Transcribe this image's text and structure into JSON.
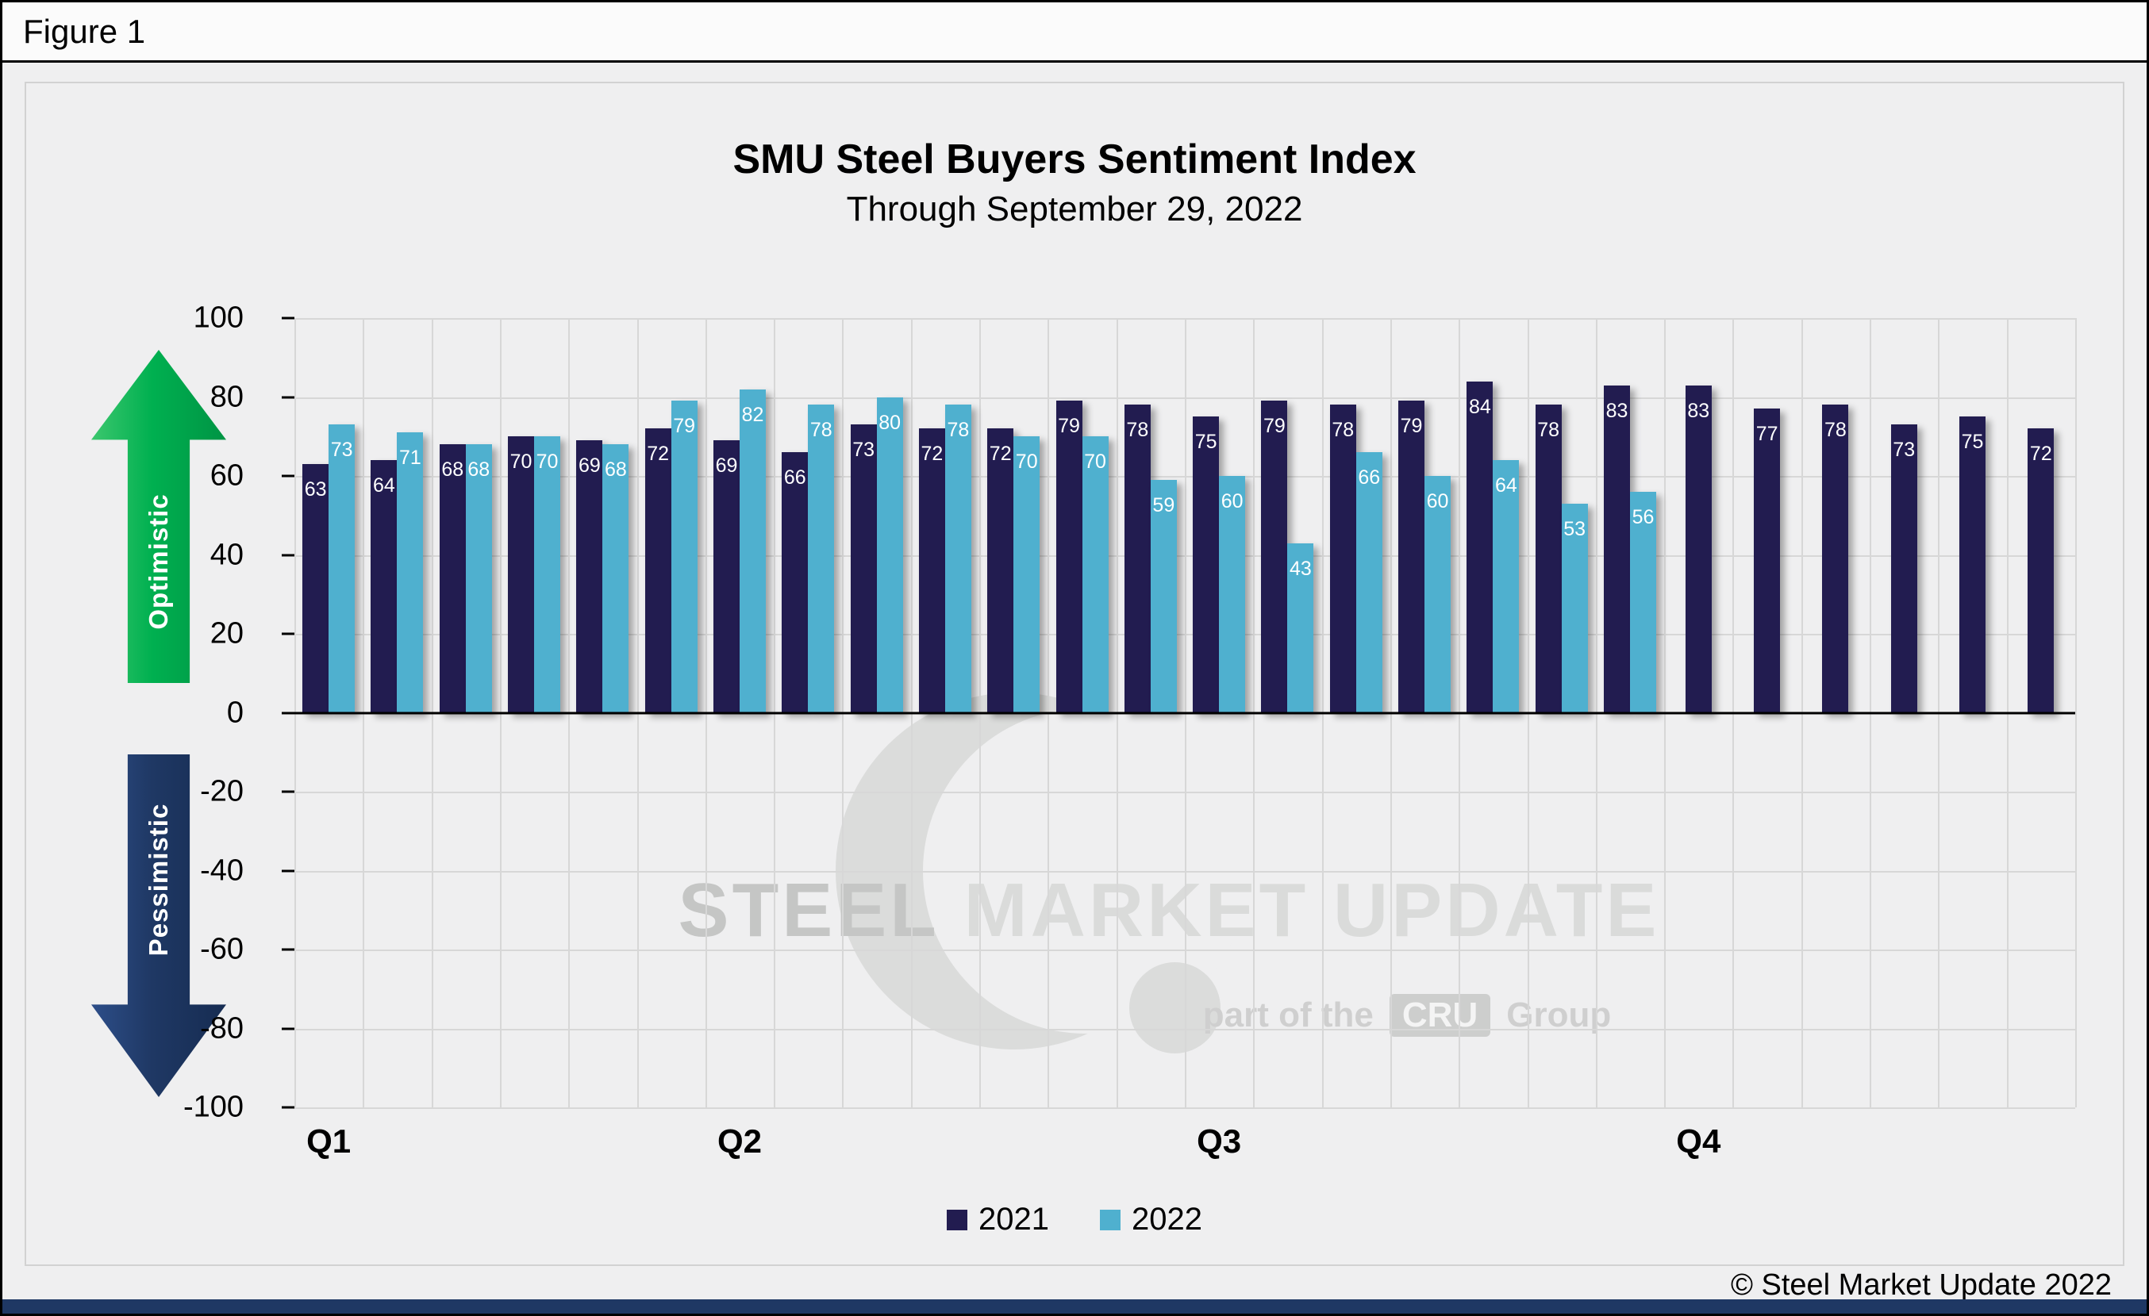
{
  "figure_label": "Figure 1",
  "header": {
    "title": "SMU Steel Buyers Sentiment Index",
    "subtitle": "Through September 29, 2022"
  },
  "annotations": {
    "optimistic": "Optimistic",
    "pessimistic": "Pessimistic"
  },
  "watermark": {
    "word1": "STEEL",
    "word2": "MARKET UPDATE",
    "tagline_prefix": "part of the",
    "tagline_box": "CRU",
    "tagline_suffix": "Group"
  },
  "footer": {
    "copyright": "© Steel Market Update 2022"
  },
  "colors": {
    "series_2021": "#221c50",
    "series_2022": "#4fb0cf",
    "optimistic_arrow": "#00b050",
    "pessimistic_arrow": "#1f3864",
    "gridline": "#d7d7d7",
    "axis_line": "#000000",
    "footer_bar": "#1f3864"
  },
  "chart_data": {
    "type": "bar",
    "title": "SMU Steel Buyers Sentiment Index",
    "subtitle": "Through September 29, 2022",
    "series": [
      {
        "name": "2021",
        "color": "#221c50",
        "values": [
          63,
          64,
          68,
          70,
          69,
          72,
          69,
          66,
          73,
          72,
          72,
          79,
          78,
          75,
          79,
          78,
          79,
          84,
          78,
          83,
          83,
          77,
          78,
          73,
          75,
          72
        ]
      },
      {
        "name": "2022",
        "color": "#4fb0cf",
        "values": [
          73,
          71,
          68,
          70,
          68,
          79,
          82,
          78,
          80,
          78,
          70,
          70,
          59,
          60,
          43,
          66,
          60,
          64,
          53,
          56,
          null,
          null,
          null,
          null,
          null,
          null
        ]
      }
    ],
    "num_groups": 26,
    "x_axis": {
      "tick_labels": [
        "Q1",
        "Q2",
        "Q3",
        "Q4"
      ],
      "tick_group_indices": [
        0,
        6,
        13,
        20
      ]
    },
    "y_axis": {
      "min": -100,
      "max": 100,
      "step": 20
    },
    "grid": true,
    "data_labels": true,
    "legend_position": "bottom"
  }
}
